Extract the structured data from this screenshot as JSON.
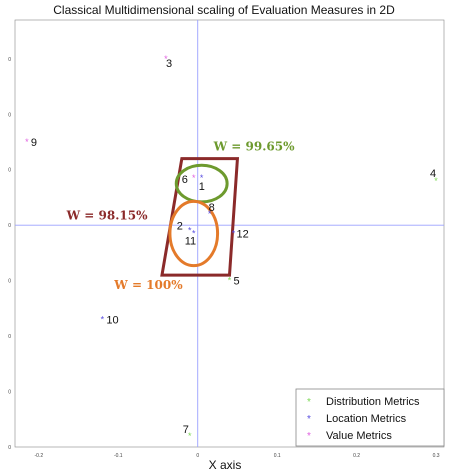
{
  "chart_data": {
    "type": "scatter",
    "title": "Classical Multidimensional scaling of Evaluation Measures in 2D",
    "xlabel": "X axis",
    "ylabel": "",
    "xlim": [
      -0.23,
      0.31
    ],
    "ylim": [
      -0.4,
      0.37
    ],
    "x_ticks": [
      "-0.2",
      "-0.1",
      "0",
      "0.1",
      "0.2",
      "0.3"
    ],
    "x_tick_values": [
      -0.2,
      -0.1,
      0,
      0.1,
      0.2,
      0.3
    ],
    "y_ticks": [
      "0",
      "0",
      "0",
      "0",
      "0",
      "0",
      "0",
      "0"
    ],
    "y_tick_values": [
      0.3,
      0.2,
      0.1,
      0,
      -0.1,
      -0.2,
      -0.3,
      -0.4
    ],
    "series": [
      {
        "name": "Distribution Metrics",
        "color": "#7ed957",
        "points": [
          {
            "label": "4",
            "x": 0.3,
            "y": 0.08
          },
          {
            "label": "5",
            "x": 0.04,
            "y": -0.1
          },
          {
            "label": "7",
            "x": -0.01,
            "y": -0.38
          }
        ]
      },
      {
        "name": "Location Metrics",
        "color": "#5a4fe0",
        "points": [
          {
            "label": "1",
            "x": 0.005,
            "y": 0.085
          },
          {
            "label": "8",
            "x": 0.015,
            "y": 0.02
          },
          {
            "label": "12",
            "x": 0.045,
            "y": -0.015
          },
          {
            "label": "2",
            "x": -0.01,
            "y": -0.01
          },
          {
            "label": "11",
            "x": -0.005,
            "y": -0.015
          },
          {
            "label": "10",
            "x": -0.12,
            "y": -0.17
          }
        ]
      },
      {
        "name": "Value Metrics",
        "color": "#e060e0",
        "points": [
          {
            "label": "3",
            "x": -0.04,
            "y": 0.3
          },
          {
            "label": "9",
            "x": -0.215,
            "y": 0.15
          },
          {
            "label": "6",
            "x": -0.005,
            "y": 0.085
          }
        ]
      }
    ],
    "annotations": [
      {
        "text": "W = 99.65%",
        "color": "#6d9a2e"
      },
      {
        "text": "W = 98.15%",
        "color": "#8b2a2a"
      },
      {
        "text": "W = 100%",
        "color": "#e47a2a"
      }
    ],
    "legend": {
      "position": "bottom-right"
    },
    "grid": false
  }
}
